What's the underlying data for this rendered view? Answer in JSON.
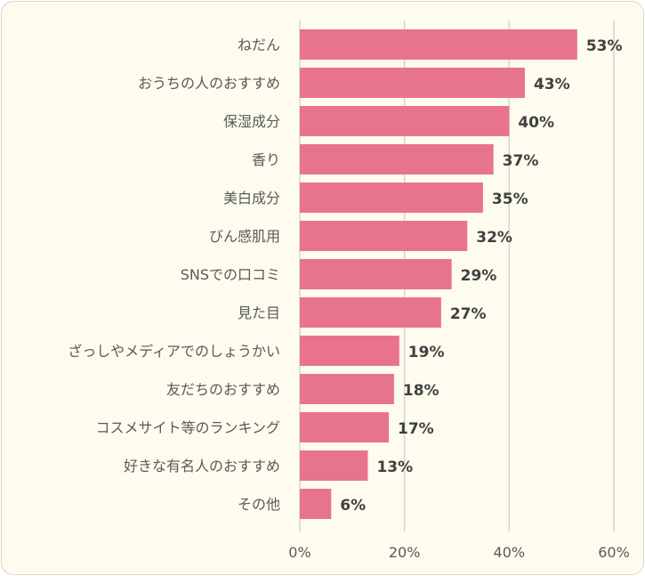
{
  "chart_data": {
    "type": "bar",
    "orientation": "horizontal",
    "categories": [
      "ねだん",
      "おうちの人のおすすめ",
      "保湿成分",
      "香り",
      "美白成分",
      "びん感肌用",
      "SNSでの口コミ",
      "見た目",
      "ざっしやメディアでのしょうかい",
      "友だちのおすすめ",
      "コスメサイト等のランキング",
      "好きな有名人のおすすめ",
      "その他"
    ],
    "values": [
      53,
      43,
      40,
      37,
      35,
      32,
      29,
      27,
      19,
      18,
      17,
      13,
      6
    ],
    "data_labels": [
      "53%",
      "43%",
      "40%",
      "37%",
      "35%",
      "32%",
      "29%",
      "27%",
      "19%",
      "18%",
      "17%",
      "13%",
      "6%"
    ],
    "x_ticks": [
      0,
      20,
      40,
      60
    ],
    "x_tick_labels": [
      "0%",
      "20%",
      "40%",
      "60%"
    ],
    "xlim": [
      0,
      60
    ],
    "grid": true,
    "bar_color": "#e8748b",
    "background": "#fdfcee"
  }
}
